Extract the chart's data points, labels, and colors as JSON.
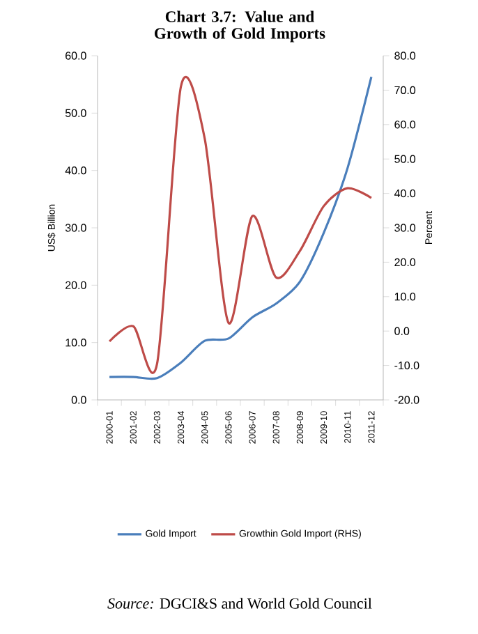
{
  "chart_data": {
    "type": "line",
    "title": "Chart 3.7: Value and Growth of Gold Imports",
    "categories": [
      "2000-01",
      "2001-02",
      "2002-03",
      "2003-04",
      "2004-05",
      "2005-06",
      "2006-07",
      "2007-08",
      "2008-09",
      "2009-10",
      "2010-11",
      "2011-12"
    ],
    "series": [
      {
        "name": "Gold Import",
        "color": "#4a7ebb",
        "values": [
          4.0,
          4.0,
          3.8,
          6.5,
          10.3,
          10.7,
          14.4,
          16.8,
          20.6,
          29.1,
          40.4,
          56.3
        ]
      },
      {
        "name": "Growthin Gold Import (RHS)",
        "color": "#be4b48",
        "axis": "y2",
        "values": [
          -3.0,
          1.4,
          -9.5,
          71.0,
          56.0,
          2.4,
          33.4,
          15.6,
          23.3,
          36.3,
          41.5,
          38.7
        ]
      }
    ],
    "ylabel": "US$ Billion",
    "y2label": "Percent",
    "ylim": [
      0,
      60
    ],
    "yticks": [
      {
        "value": 0,
        "label": "0.0"
      },
      {
        "value": 10,
        "label": "10.0"
      },
      {
        "value": 20,
        "label": "20.0"
      },
      {
        "value": 30,
        "label": "30.0"
      },
      {
        "value": 40,
        "label": "40.0"
      },
      {
        "value": 50,
        "label": "50.0"
      },
      {
        "value": 60,
        "label": "60.0"
      }
    ],
    "y2lim": [
      -20,
      80
    ],
    "y2ticks": [
      {
        "value": -20,
        "label": "-20.0"
      },
      {
        "value": -10,
        "label": "-10.0"
      },
      {
        "value": 0,
        "label": "0.0"
      },
      {
        "value": 10,
        "label": "10.0"
      },
      {
        "value": 20,
        "label": "20.0"
      },
      {
        "value": 30,
        "label": "30.0"
      },
      {
        "value": 40,
        "label": "40.0"
      },
      {
        "value": 50,
        "label": "50.0"
      },
      {
        "value": 60,
        "label": "60.0"
      },
      {
        "value": 70,
        "label": "70.0"
      },
      {
        "value": 80,
        "label": "80.0"
      }
    ],
    "legend": "bottom",
    "grid": false,
    "marker": "none",
    "line_style": "solid",
    "annotations": [
      "*Source:* DGCI&S and World Gold Council"
    ]
  }
}
